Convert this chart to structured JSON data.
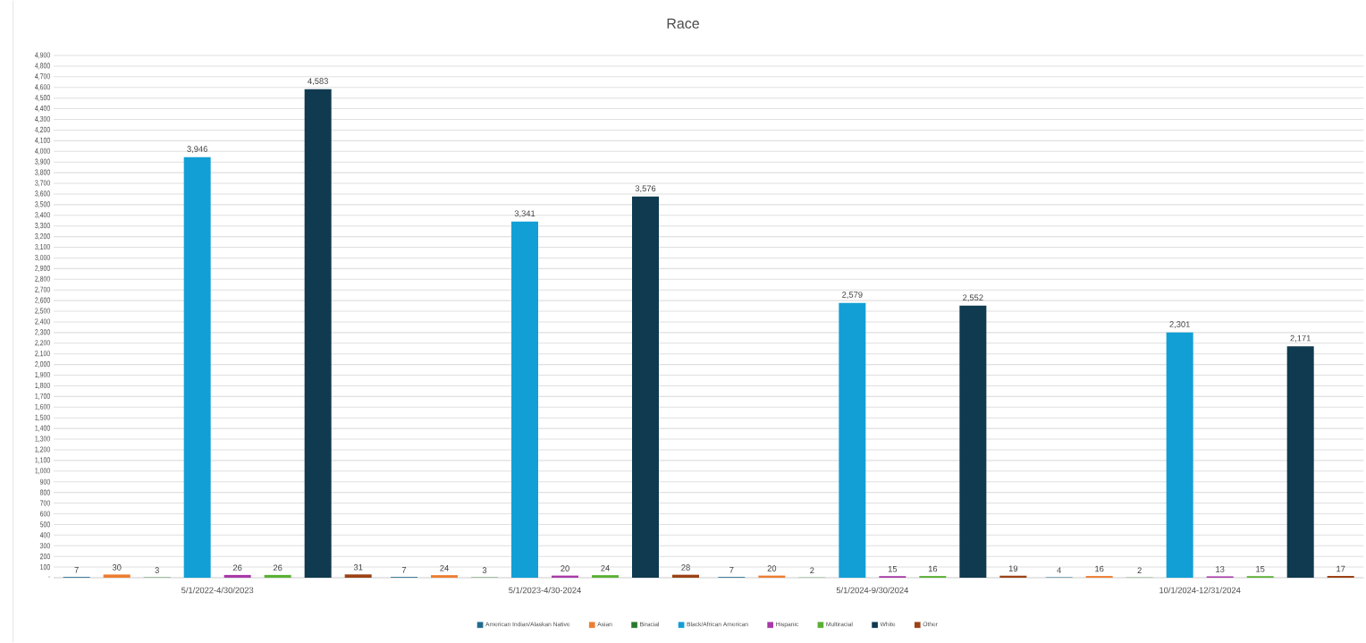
{
  "chart_data": {
    "type": "bar",
    "title": "Race",
    "categories": [
      "5/1/2022-4/30/2023",
      "5/1/2023-4/30-2024",
      "5/1/2024-9/30/2024",
      "10/1/2024-12/31/2024"
    ],
    "series": [
      {
        "name": "American Indian/Alaskan Native",
        "color": "#236b8e",
        "values": [
          7,
          7,
          7,
          4
        ],
        "value_labels": [
          "7",
          "7",
          "7",
          "4"
        ]
      },
      {
        "name": "Asian",
        "color": "#ed7d31",
        "values": [
          30,
          24,
          20,
          16
        ],
        "value_labels": [
          "30",
          "24",
          "20",
          "16"
        ]
      },
      {
        "name": "Biracial",
        "color": "#2a7a2e",
        "values": [
          3,
          3,
          2,
          2
        ],
        "value_labels": [
          "3",
          "3",
          "2",
          "2"
        ]
      },
      {
        "name": "Black/African American",
        "color": "#129fd6",
        "values": [
          3946,
          3341,
          2579,
          2301
        ],
        "value_labels": [
          "3,946",
          "3,341",
          "2,579",
          "2,301"
        ]
      },
      {
        "name": "Hispanic",
        "color": "#a83aa8",
        "values": [
          26,
          20,
          15,
          13
        ],
        "value_labels": [
          "26",
          "20",
          "15",
          "13"
        ]
      },
      {
        "name": "Multiracial",
        "color": "#5ab033",
        "values": [
          26,
          24,
          16,
          15
        ],
        "value_labels": [
          "26",
          "24",
          "16",
          "15"
        ]
      },
      {
        "name": "White",
        "color": "#0f3a4f",
        "values": [
          4583,
          3576,
          2552,
          2171
        ],
        "value_labels": [
          "4,583",
          "3,576",
          "2,552",
          "2,171"
        ]
      },
      {
        "name": "Other",
        "color": "#9c4215",
        "values": [
          31,
          28,
          19,
          17
        ],
        "value_labels": [
          "31",
          "28",
          "19",
          "17"
        ]
      }
    ],
    "ylim": [
      0,
      4900
    ],
    "yticks": [
      {
        "value": 0,
        "label": "-"
      },
      100,
      200,
      300,
      400,
      500,
      600,
      700,
      800,
      900,
      {
        "value": 1000,
        "label": "1,000"
      },
      {
        "value": 1100,
        "label": "1,100"
      },
      {
        "value": 1200,
        "label": "1,200"
      },
      {
        "value": 1300,
        "label": "1,300"
      },
      {
        "value": 1400,
        "label": "1,400"
      },
      {
        "value": 1500,
        "label": "1,500"
      },
      {
        "value": 1600,
        "label": "1,600"
      },
      {
        "value": 1700,
        "label": "1,700"
      },
      {
        "value": 1800,
        "label": "1,800"
      },
      {
        "value": 1900,
        "label": "1,900"
      },
      {
        "value": 2000,
        "label": "2,000"
      },
      {
        "value": 2100,
        "label": "2,100"
      },
      {
        "value": 2200,
        "label": "2,200"
      },
      {
        "value": 2300,
        "label": "2,300"
      },
      {
        "value": 2400,
        "label": "2,400"
      },
      {
        "value": 2500,
        "label": "2,500"
      },
      {
        "value": 2600,
        "label": "2,600"
      },
      {
        "value": 2700,
        "label": "2,700"
      },
      {
        "value": 2800,
        "label": "2,800"
      },
      {
        "value": 2900,
        "label": "2,900"
      },
      {
        "value": 3000,
        "label": "3,000"
      },
      {
        "value": 3100,
        "label": "3,100"
      },
      {
        "value": 3200,
        "label": "3,200"
      },
      {
        "value": 3300,
        "label": "3,300"
      },
      {
        "value": 3400,
        "label": "3,400"
      },
      {
        "value": 3500,
        "label": "3,500"
      },
      {
        "value": 3600,
        "label": "3,600"
      },
      {
        "value": 3700,
        "label": "3,700"
      },
      {
        "value": 3800,
        "label": "3,800"
      },
      {
        "value": 3900,
        "label": "3,900"
      },
      {
        "value": 4000,
        "label": "4,000"
      },
      {
        "value": 4100,
        "label": "4,100"
      },
      {
        "value": 4200,
        "label": "4,200"
      },
      {
        "value": 4300,
        "label": "4,300"
      },
      {
        "value": 4400,
        "label": "4,400"
      },
      {
        "value": 4500,
        "label": "4,500"
      },
      {
        "value": 4600,
        "label": "4,600"
      },
      {
        "value": 4700,
        "label": "4,700"
      },
      {
        "value": 4800,
        "label": "4,800"
      },
      {
        "value": 4900,
        "label": "4,900"
      }
    ],
    "grid": "y",
    "legend": "bottom"
  }
}
